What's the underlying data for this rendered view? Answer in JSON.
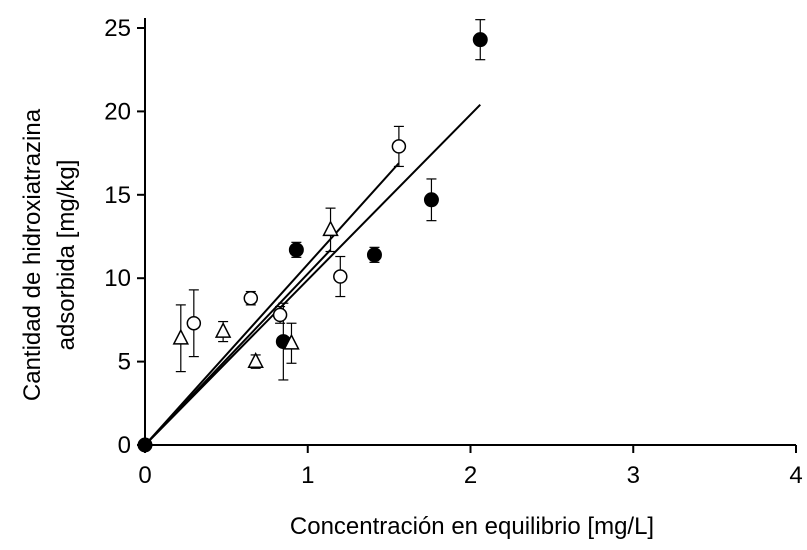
{
  "chart_data": {
    "type": "scatter",
    "title": "",
    "xlabel": "Concentración en equilibrio [mg/L]",
    "ylabel_lines": [
      "Cantidad de hidroxiatrazina",
      "adsorbida [mg/kg]"
    ],
    "xlim": [
      0,
      4
    ],
    "ylim": [
      0,
      25
    ],
    "xticks": [
      0,
      1,
      2,
      3,
      4
    ],
    "yticks": [
      0,
      5,
      10,
      15,
      20,
      25
    ],
    "grid": false,
    "legend": "none",
    "series": [
      {
        "marker": "filled-circle",
        "color": "#000000",
        "points": [
          {
            "x": 0,
            "y": 0,
            "err": 0
          },
          {
            "x": 0.85,
            "y": 6.2,
            "err": 2.3
          },
          {
            "x": 0.93,
            "y": 11.7,
            "err": 0.45
          },
          {
            "x": 1.41,
            "y": 11.4,
            "err": 0.45
          },
          {
            "x": 1.76,
            "y": 14.7,
            "err": 1.25
          },
          {
            "x": 2.06,
            "y": 24.3,
            "err": 1.2
          }
        ],
        "fit": {
          "x0": 0,
          "y0": 0,
          "x1": 2.06,
          "y1": 20.4
        }
      },
      {
        "marker": "open-circle",
        "color": "#000000",
        "points": [
          {
            "x": 0.3,
            "y": 7.3,
            "err": 2.0
          },
          {
            "x": 0.65,
            "y": 8.8,
            "err": 0.4
          },
          {
            "x": 0.83,
            "y": 7.8,
            "err": 0.5
          },
          {
            "x": 1.2,
            "y": 10.1,
            "err": 1.2
          },
          {
            "x": 1.56,
            "y": 17.9,
            "err": 1.2
          }
        ],
        "fit": {
          "x0": 0,
          "y0": 0,
          "x1": 1.56,
          "y1": 16.9
        }
      },
      {
        "marker": "open-triangle",
        "color": "#000000",
        "points": [
          {
            "x": 0.22,
            "y": 6.4,
            "err": 2.0
          },
          {
            "x": 0.48,
            "y": 6.8,
            "err": 0.6
          },
          {
            "x": 0.68,
            "y": 5.0,
            "err": 0.4
          },
          {
            "x": 0.9,
            "y": 6.1,
            "err": 1.2
          },
          {
            "x": 1.14,
            "y": 12.9,
            "err": 1.3
          }
        ],
        "fit": {
          "x0": 0,
          "y0": 0,
          "x1": 1.14,
          "y1": 11.7
        }
      }
    ]
  }
}
